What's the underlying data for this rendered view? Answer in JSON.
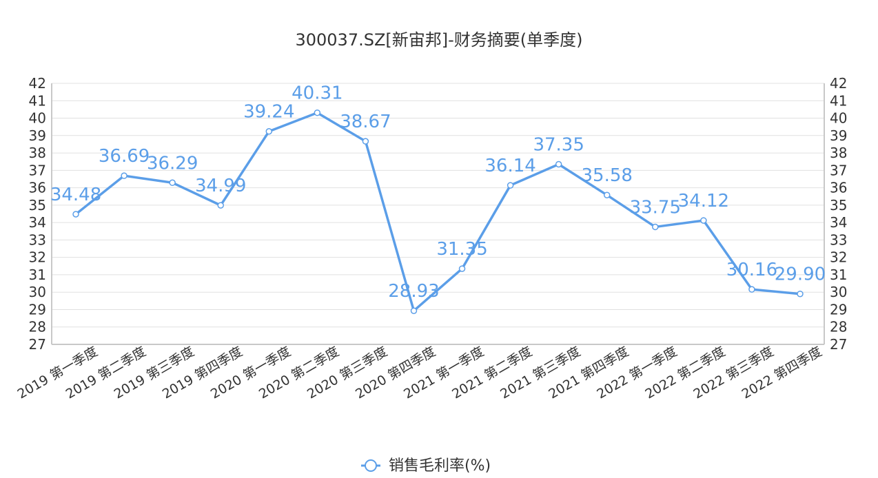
{
  "chart_data": {
    "type": "line",
    "title": "300037.SZ[新宙邦]-财务摘要(单季度)",
    "categories": [
      "2019 第一季度",
      "2019 第二季度",
      "2019 第三季度",
      "2019 第四季度",
      "2020 第一季度",
      "2020 第二季度",
      "2020 第三季度",
      "2020 第四季度",
      "2021 第一季度",
      "2021 第二季度",
      "2021 第三季度",
      "2021 第四季度",
      "2022 第一季度",
      "2022 第二季度",
      "2022 第三季度",
      "2022 第四季度"
    ],
    "series": [
      {
        "name": "销售毛利率(%)",
        "values": [
          34.48,
          36.69,
          36.29,
          34.99,
          39.24,
          40.31,
          38.67,
          28.93,
          31.35,
          36.14,
          37.35,
          35.58,
          33.75,
          34.12,
          30.16,
          29.9
        ],
        "labels": [
          "34.48",
          "36.69",
          "36.29",
          "34.99",
          "39.24",
          "40.31",
          "38.67",
          "28.93",
          "31.35",
          "36.14",
          "37.35",
          "35.58",
          "33.75",
          "34.12",
          "30.16",
          "29.90"
        ]
      }
    ],
    "ylim": [
      27,
      42
    ],
    "yticks": [
      27,
      28,
      29,
      30,
      31,
      32,
      33,
      34,
      35,
      36,
      37,
      38,
      39,
      40,
      41,
      42
    ],
    "y_axes": "left-and-right",
    "grid": true,
    "legend": "bottom-center",
    "colors": {
      "line": "#5b9ee8",
      "grid": "#e0e0e0",
      "axis": "#c8c8c8"
    }
  }
}
